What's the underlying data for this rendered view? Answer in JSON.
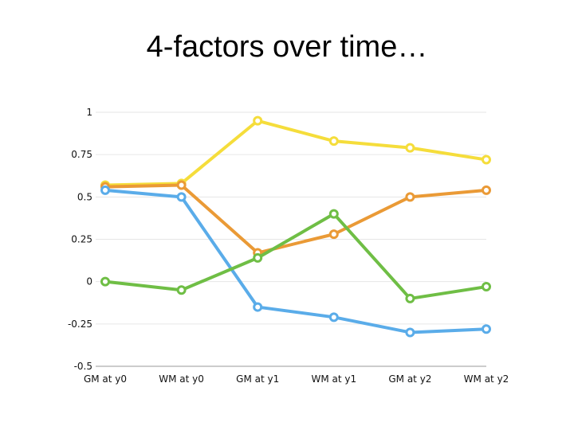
{
  "slide": {
    "title": "4-factors over time…"
  },
  "chart_data": {
    "type": "line",
    "title": "",
    "xlabel": "",
    "ylabel": "",
    "categories": [
      "GM at y0",
      "WM at y0",
      "GM at y1",
      "WM at y1",
      "GM at y2",
      "WM at y2"
    ],
    "y_ticks": [
      "1",
      "0.75",
      "0.5",
      "0.25",
      "0",
      "-0.25",
      "-0.5"
    ],
    "y_tick_values": [
      1,
      0.75,
      0.5,
      0.25,
      0,
      -0.25,
      -0.5
    ],
    "ylim": [
      -0.5,
      1
    ],
    "grid": true,
    "legend": "none",
    "series": [
      {
        "color": "#f5dd3b",
        "values": [
          0.57,
          0.58,
          0.95,
          0.83,
          0.79,
          0.72
        ]
      },
      {
        "color": "#ea9a36",
        "values": [
          0.56,
          0.57,
          0.17,
          0.28,
          0.5,
          0.54
        ]
      },
      {
        "color": "#5aace9",
        "values": [
          0.54,
          0.5,
          -0.15,
          -0.21,
          -0.3,
          -0.28
        ]
      },
      {
        "color": "#6fbe45",
        "values": [
          0.0,
          -0.05,
          0.14,
          0.4,
          -0.1,
          -0.03
        ]
      }
    ]
  }
}
